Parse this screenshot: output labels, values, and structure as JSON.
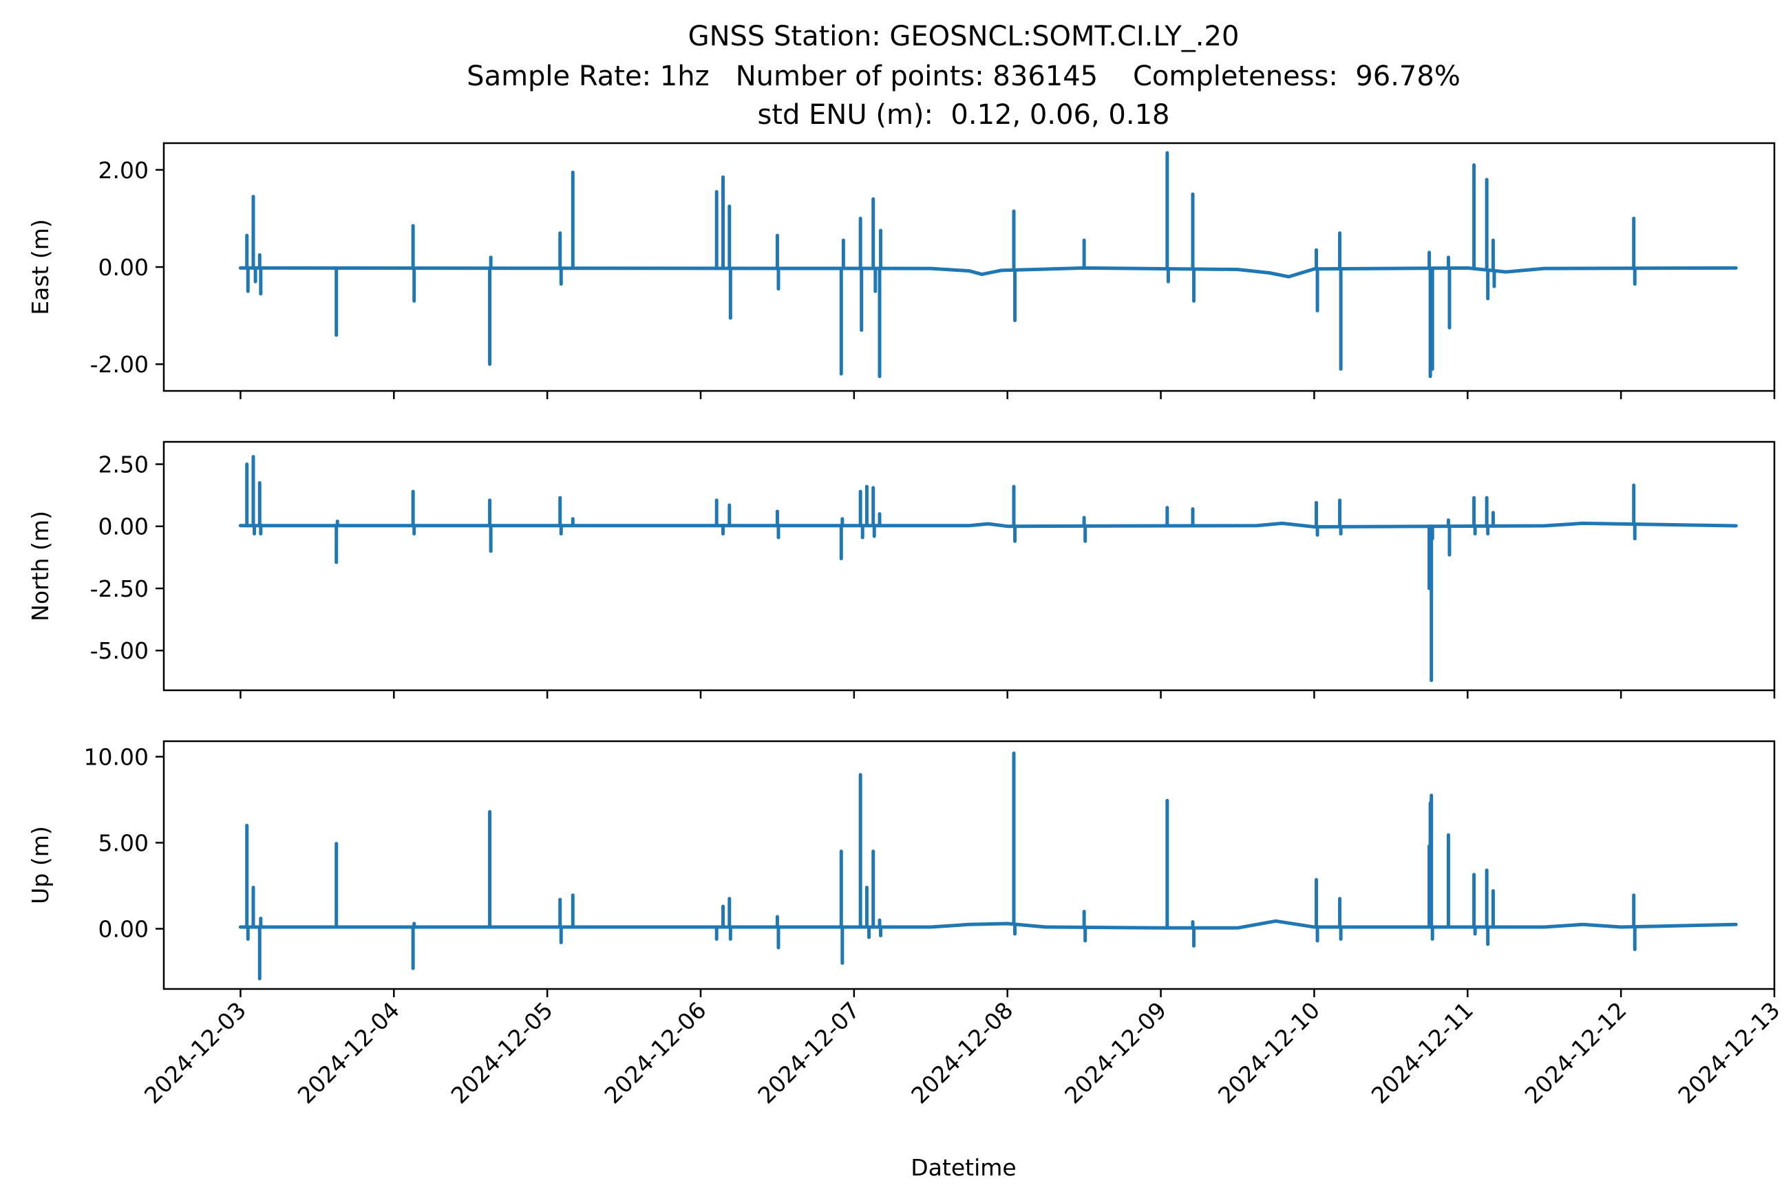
{
  "title": {
    "line1": "GNSS Station: GEOSNCL:SOMT.CI.LY_.20",
    "line2": "Sample Rate: 1hz   Number of points: 836145    Completeness:  96.78%",
    "line3": "std ENU (m):  0.12, 0.06, 0.18"
  },
  "xlabel": "Datetime",
  "chart_data": [
    {
      "type": "line",
      "ylabel": "East (m)",
      "ylim": [
        -2.55,
        2.55
      ],
      "yticks": [
        2.0,
        0.0,
        -2.0
      ],
      "ytick_labels": [
        "2.00",
        "0.00",
        "-2.00"
      ],
      "xlim": [
        "2024-12-02T12:00",
        "2024-12-13T00:00"
      ],
      "color": "#1f77b4",
      "baseline": [
        [
          "2024-12-03T00:00",
          -0.02
        ],
        [
          "2024-12-07T12:00",
          -0.03
        ],
        [
          "2024-12-07T18:00",
          -0.08
        ],
        [
          "2024-12-07T20:00",
          -0.15
        ],
        [
          "2024-12-07T23:00",
          -0.07
        ],
        [
          "2024-12-08T12:00",
          -0.02
        ],
        [
          "2024-12-09T12:00",
          -0.05
        ],
        [
          "2024-12-09T17:00",
          -0.12
        ],
        [
          "2024-12-09T20:00",
          -0.2
        ],
        [
          "2024-12-10T00:00",
          -0.04
        ],
        [
          "2024-12-11T00:00",
          -0.02
        ],
        [
          "2024-12-11T06:00",
          -0.1
        ],
        [
          "2024-12-11T12:00",
          -0.03
        ],
        [
          "2024-12-12T18:00",
          -0.02
        ]
      ],
      "spikes": [
        [
          "2024-12-03T01:00",
          0.65
        ],
        [
          "2024-12-03T01:10",
          -0.5
        ],
        [
          "2024-12-03T02:00",
          1.45
        ],
        [
          "2024-12-03T02:20",
          -0.3
        ],
        [
          "2024-12-03T03:00",
          0.25
        ],
        [
          "2024-12-03T03:10",
          -0.55
        ],
        [
          "2024-12-03T15:00",
          -1.4
        ],
        [
          "2024-12-04T03:00",
          0.85
        ],
        [
          "2024-12-04T03:10",
          -0.7
        ],
        [
          "2024-12-04T15:00",
          -2.0
        ],
        [
          "2024-12-04T15:10",
          0.2
        ],
        [
          "2024-12-05T02:00",
          0.7
        ],
        [
          "2024-12-05T02:10",
          -0.35
        ],
        [
          "2024-12-05T04:00",
          1.95
        ],
        [
          "2024-12-06T02:30",
          1.55
        ],
        [
          "2024-12-06T03:30",
          1.85
        ],
        [
          "2024-12-06T04:30",
          1.25
        ],
        [
          "2024-12-06T04:40",
          -1.05
        ],
        [
          "2024-12-06T12:00",
          0.65
        ],
        [
          "2024-12-06T12:10",
          -0.45
        ],
        [
          "2024-12-06T22:00",
          -2.2
        ],
        [
          "2024-12-06T22:20",
          0.55
        ],
        [
          "2024-12-07T01:00",
          1.0
        ],
        [
          "2024-12-07T01:10",
          -1.3
        ],
        [
          "2024-12-07T03:00",
          1.4
        ],
        [
          "2024-12-07T03:20",
          -0.5
        ],
        [
          "2024-12-07T04:00",
          -2.25
        ],
        [
          "2024-12-07T04:10",
          0.75
        ],
        [
          "2024-12-08T01:00",
          1.15
        ],
        [
          "2024-12-08T01:10",
          -1.1
        ],
        [
          "2024-12-08T12:00",
          0.55
        ],
        [
          "2024-12-09T01:00",
          2.35
        ],
        [
          "2024-12-09T01:10",
          -0.3
        ],
        [
          "2024-12-09T05:00",
          1.5
        ],
        [
          "2024-12-09T05:10",
          -0.7
        ],
        [
          "2024-12-10T00:20",
          0.35
        ],
        [
          "2024-12-10T00:30",
          -0.9
        ],
        [
          "2024-12-10T04:00",
          0.7
        ],
        [
          "2024-12-10T04:10",
          -2.1
        ],
        [
          "2024-12-10T18:00",
          0.3
        ],
        [
          "2024-12-10T18:10",
          -2.25
        ],
        [
          "2024-12-10T18:30",
          -2.1
        ],
        [
          "2024-12-10T21:00",
          0.2
        ],
        [
          "2024-12-10T21:10",
          -1.25
        ],
        [
          "2024-12-11T01:00",
          2.1
        ],
        [
          "2024-12-11T03:00",
          1.8
        ],
        [
          "2024-12-11T03:10",
          -0.65
        ],
        [
          "2024-12-11T04:00",
          0.55
        ],
        [
          "2024-12-11T04:10",
          -0.4
        ],
        [
          "2024-12-12T02:00",
          1.0
        ],
        [
          "2024-12-12T02:10",
          -0.35
        ]
      ]
    },
    {
      "type": "line",
      "ylabel": "North (m)",
      "ylim": [
        -6.6,
        3.4
      ],
      "yticks": [
        2.5,
        0.0,
        -2.5,
        -5.0
      ],
      "ytick_labels": [
        "2.50",
        "0.00",
        "-2.50",
        "-5.00"
      ],
      "xlim": [
        "2024-12-02T12:00",
        "2024-12-13T00:00"
      ],
      "color": "#1f77b4",
      "baseline": [
        [
          "2024-12-03T00:00",
          0.03
        ],
        [
          "2024-12-07T18:00",
          0.03
        ],
        [
          "2024-12-07T21:00",
          0.1
        ],
        [
          "2024-12-08T00:00",
          0.0
        ],
        [
          "2024-12-09T15:00",
          0.03
        ],
        [
          "2024-12-09T19:00",
          0.12
        ],
        [
          "2024-12-10T00:00",
          -0.02
        ],
        [
          "2024-12-11T12:00",
          0.02
        ],
        [
          "2024-12-11T18:00",
          0.12
        ],
        [
          "2024-12-12T18:00",
          0.02
        ]
      ],
      "spikes": [
        [
          "2024-12-03T01:00",
          2.5
        ],
        [
          "2024-12-03T02:00",
          2.8
        ],
        [
          "2024-12-03T02:10",
          -0.3
        ],
        [
          "2024-12-03T03:00",
          1.75
        ],
        [
          "2024-12-03T03:10",
          -0.3
        ],
        [
          "2024-12-03T15:00",
          -1.45
        ],
        [
          "2024-12-03T15:10",
          0.2
        ],
        [
          "2024-12-04T03:00",
          1.4
        ],
        [
          "2024-12-04T03:10",
          -0.3
        ],
        [
          "2024-12-04T15:00",
          1.05
        ],
        [
          "2024-12-04T15:10",
          -1.0
        ],
        [
          "2024-12-05T02:00",
          1.15
        ],
        [
          "2024-12-05T02:10",
          -0.3
        ],
        [
          "2024-12-05T04:00",
          0.3
        ],
        [
          "2024-12-06T02:30",
          1.05
        ],
        [
          "2024-12-06T03:30",
          -0.3
        ],
        [
          "2024-12-06T04:30",
          0.85
        ],
        [
          "2024-12-06T12:00",
          0.6
        ],
        [
          "2024-12-06T12:10",
          -0.45
        ],
        [
          "2024-12-06T22:00",
          -1.3
        ],
        [
          "2024-12-06T22:10",
          0.3
        ],
        [
          "2024-12-07T01:00",
          1.4
        ],
        [
          "2024-12-07T01:20",
          -0.45
        ],
        [
          "2024-12-07T02:00",
          1.6
        ],
        [
          "2024-12-07T03:00",
          1.55
        ],
        [
          "2024-12-07T03:10",
          -0.4
        ],
        [
          "2024-12-07T04:00",
          0.5
        ],
        [
          "2024-12-08T01:00",
          1.6
        ],
        [
          "2024-12-08T01:10",
          -0.6
        ],
        [
          "2024-12-08T12:00",
          0.35
        ],
        [
          "2024-12-08T12:10",
          -0.6
        ],
        [
          "2024-12-09T01:00",
          0.75
        ],
        [
          "2024-12-09T05:00",
          0.7
        ],
        [
          "2024-12-10T00:20",
          0.95
        ],
        [
          "2024-12-10T00:30",
          -0.35
        ],
        [
          "2024-12-10T04:00",
          1.05
        ],
        [
          "2024-12-10T04:10",
          -0.3
        ],
        [
          "2024-12-10T18:00",
          -2.5
        ],
        [
          "2024-12-10T18:20",
          -6.2
        ],
        [
          "2024-12-10T18:30",
          -0.5
        ],
        [
          "2024-12-10T21:00",
          0.25
        ],
        [
          "2024-12-10T21:10",
          -1.15
        ],
        [
          "2024-12-11T01:00",
          1.15
        ],
        [
          "2024-12-11T01:10",
          -0.3
        ],
        [
          "2024-12-11T03:00",
          1.15
        ],
        [
          "2024-12-11T03:10",
          -0.3
        ],
        [
          "2024-12-11T04:00",
          0.55
        ],
        [
          "2024-12-12T02:00",
          1.65
        ],
        [
          "2024-12-12T02:10",
          -0.5
        ]
      ]
    },
    {
      "type": "line",
      "ylabel": "Up (m)",
      "ylim": [
        -3.5,
        10.9
      ],
      "yticks": [
        10.0,
        5.0,
        0.0
      ],
      "ytick_labels": [
        "10.00",
        "5.00",
        "0.00"
      ],
      "xlim": [
        "2024-12-02T12:00",
        "2024-12-13T00:00"
      ],
      "color": "#1f77b4",
      "baseline": [
        [
          "2024-12-03T00:00",
          0.1
        ],
        [
          "2024-12-07T12:00",
          0.1
        ],
        [
          "2024-12-07T18:00",
          0.25
        ],
        [
          "2024-12-08T00:00",
          0.3
        ],
        [
          "2024-12-08T06:00",
          0.1
        ],
        [
          "2024-12-09T00:00",
          0.05
        ],
        [
          "2024-12-09T12:00",
          0.05
        ],
        [
          "2024-12-09T18:00",
          0.45
        ],
        [
          "2024-12-10T00:00",
          0.1
        ],
        [
          "2024-12-11T12:00",
          0.1
        ],
        [
          "2024-12-11T18:00",
          0.25
        ],
        [
          "2024-12-12T00:00",
          0.1
        ],
        [
          "2024-12-12T18:00",
          0.25
        ]
      ],
      "spikes": [
        [
          "2024-12-03T01:00",
          6.0
        ],
        [
          "2024-12-03T01:10",
          -0.6
        ],
        [
          "2024-12-03T02:00",
          2.4
        ],
        [
          "2024-12-03T03:00",
          -2.9
        ],
        [
          "2024-12-03T03:10",
          0.6
        ],
        [
          "2024-12-03T15:00",
          4.95
        ],
        [
          "2024-12-04T03:00",
          -2.3
        ],
        [
          "2024-12-04T03:10",
          0.3
        ],
        [
          "2024-12-04T15:00",
          6.8
        ],
        [
          "2024-12-05T02:00",
          1.7
        ],
        [
          "2024-12-05T02:10",
          -0.8
        ],
        [
          "2024-12-05T04:00",
          1.95
        ],
        [
          "2024-12-06T02:30",
          -0.6
        ],
        [
          "2024-12-06T03:30",
          1.3
        ],
        [
          "2024-12-06T04:30",
          1.75
        ],
        [
          "2024-12-06T04:40",
          -0.6
        ],
        [
          "2024-12-06T12:00",
          0.7
        ],
        [
          "2024-12-06T12:10",
          -1.1
        ],
        [
          "2024-12-06T22:00",
          4.5
        ],
        [
          "2024-12-06T22:10",
          -2.0
        ],
        [
          "2024-12-07T01:00",
          8.95
        ],
        [
          "2024-12-07T02:00",
          2.4
        ],
        [
          "2024-12-07T02:20",
          -0.5
        ],
        [
          "2024-12-07T03:00",
          4.5
        ],
        [
          "2024-12-07T04:00",
          0.5
        ],
        [
          "2024-12-07T04:10",
          -0.4
        ],
        [
          "2024-12-08T01:00",
          10.2
        ],
        [
          "2024-12-08T01:10",
          -0.3
        ],
        [
          "2024-12-08T12:00",
          1.0
        ],
        [
          "2024-12-08T12:10",
          -0.7
        ],
        [
          "2024-12-09T01:00",
          7.45
        ],
        [
          "2024-12-09T05:00",
          0.4
        ],
        [
          "2024-12-09T05:10",
          -1.0
        ],
        [
          "2024-12-10T00:20",
          2.85
        ],
        [
          "2024-12-10T00:30",
          -0.7
        ],
        [
          "2024-12-10T04:00",
          1.75
        ],
        [
          "2024-12-10T04:10",
          -0.6
        ],
        [
          "2024-12-10T18:00",
          4.8
        ],
        [
          "2024-12-10T18:10",
          7.3
        ],
        [
          "2024-12-10T18:20",
          7.75
        ],
        [
          "2024-12-10T18:30",
          -0.6
        ],
        [
          "2024-12-10T21:00",
          5.45
        ],
        [
          "2024-12-11T01:00",
          3.15
        ],
        [
          "2024-12-11T01:10",
          -0.3
        ],
        [
          "2024-12-11T03:00",
          3.4
        ],
        [
          "2024-12-11T03:10",
          -0.9
        ],
        [
          "2024-12-11T04:00",
          2.2
        ],
        [
          "2024-12-12T02:00",
          1.95
        ],
        [
          "2024-12-12T02:10",
          -1.2
        ]
      ]
    }
  ],
  "x_ticks": [
    {
      "date": "2024-12-03T00:00",
      "label": "2024-12-03"
    },
    {
      "date": "2024-12-04T00:00",
      "label": "2024-12-04"
    },
    {
      "date": "2024-12-05T00:00",
      "label": "2024-12-05"
    },
    {
      "date": "2024-12-06T00:00",
      "label": "2024-12-06"
    },
    {
      "date": "2024-12-07T00:00",
      "label": "2024-12-07"
    },
    {
      "date": "2024-12-08T00:00",
      "label": "2024-12-08"
    },
    {
      "date": "2024-12-09T00:00",
      "label": "2024-12-09"
    },
    {
      "date": "2024-12-10T00:00",
      "label": "2024-12-10"
    },
    {
      "date": "2024-12-11T00:00",
      "label": "2024-12-11"
    },
    {
      "date": "2024-12-12T00:00",
      "label": "2024-12-12"
    },
    {
      "date": "2024-12-13T00:00",
      "label": "2024-12-13"
    }
  ]
}
